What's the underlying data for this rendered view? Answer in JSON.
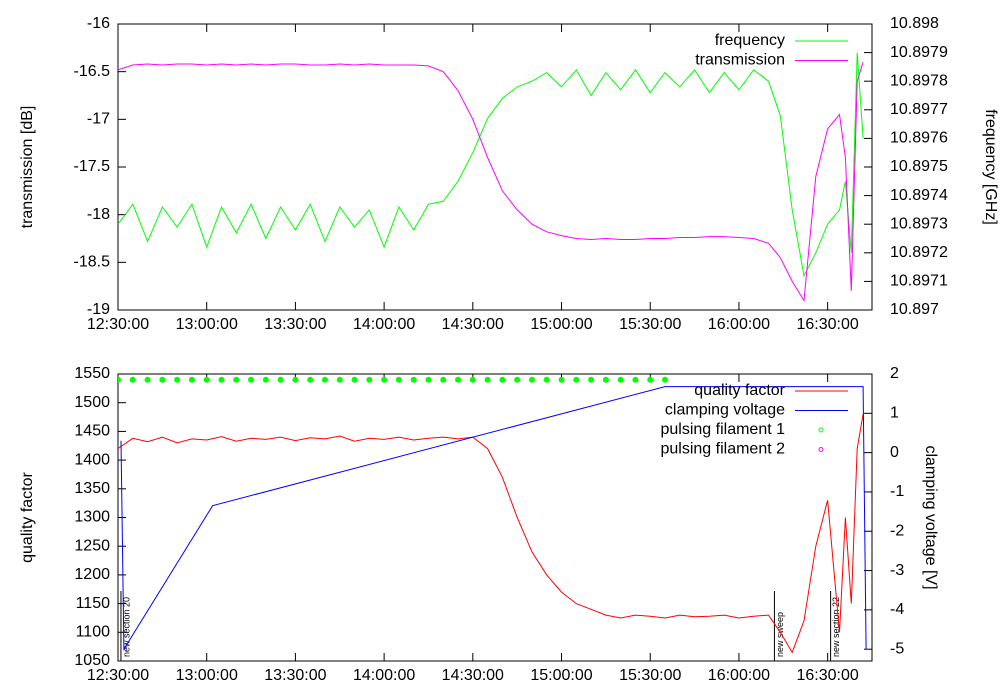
{
  "chart_data": [
    {
      "type": "line",
      "y_label": "transmission [dB]",
      "y2_label": "frequency [GHz]",
      "x": [
        "12:30:00",
        "12:35:00",
        "12:40:00",
        "12:45:00",
        "12:50:00",
        "12:55:00",
        "13:00:00",
        "13:05:00",
        "13:10:00",
        "13:15:00",
        "13:20:00",
        "13:25:00",
        "13:30:00",
        "13:35:00",
        "13:40:00",
        "13:45:00",
        "13:50:00",
        "13:55:00",
        "14:00:00",
        "14:05:00",
        "14:10:00",
        "14:15:00",
        "14:20:00",
        "14:25:00",
        "14:30:00",
        "14:35:00",
        "14:40:00",
        "14:45:00",
        "14:50:00",
        "14:55:00",
        "15:00:00",
        "15:05:00",
        "15:10:00",
        "15:15:00",
        "15:20:00",
        "15:25:00",
        "15:30:00",
        "15:35:00",
        "15:40:00",
        "15:45:00",
        "15:50:00",
        "15:55:00",
        "16:00:00",
        "16:05:00",
        "16:10:00",
        "16:14:00",
        "16:18:00",
        "16:22:00",
        "16:26:00",
        "16:30:00",
        "16:34:00",
        "16:36:00",
        "16:38:00",
        "16:40:00",
        "16:42:00"
      ],
      "series": [
        {
          "name": "frequency",
          "color": "#00ff00",
          "axis": "y2",
          "values": [
            10.8973,
            10.89737,
            10.89724,
            10.89736,
            10.89729,
            10.89737,
            10.89722,
            10.89736,
            10.89727,
            10.89737,
            10.89725,
            10.89736,
            10.89728,
            10.89737,
            10.89724,
            10.89736,
            10.89729,
            10.89735,
            10.89722,
            10.89736,
            10.89728,
            10.89737,
            10.89738,
            10.89745,
            10.89755,
            10.89767,
            10.89774,
            10.89778,
            10.8978,
            10.89783,
            10.89778,
            10.89784,
            10.89775,
            10.89783,
            10.89777,
            10.89784,
            10.89776,
            10.89783,
            10.89778,
            10.89784,
            10.89776,
            10.89783,
            10.89777,
            10.89784,
            10.8978,
            10.89768,
            10.89735,
            10.89712,
            10.8972,
            10.8973,
            10.89735,
            10.89745,
            10.8972,
            10.8979,
            10.8976
          ]
        },
        {
          "name": "transmission",
          "color": "#ff00ff",
          "values": [
            -16.48,
            -16.43,
            -16.42,
            -16.43,
            -16.42,
            -16.42,
            -16.43,
            -16.42,
            -16.43,
            -16.42,
            -16.43,
            -16.42,
            -16.42,
            -16.43,
            -16.43,
            -16.42,
            -16.43,
            -16.42,
            -16.43,
            -16.43,
            -16.43,
            -16.44,
            -16.5,
            -16.7,
            -17.0,
            -17.4,
            -17.75,
            -17.95,
            -18.1,
            -18.18,
            -18.22,
            -18.25,
            -18.26,
            -18.25,
            -18.26,
            -18.26,
            -18.25,
            -18.25,
            -18.24,
            -18.24,
            -18.23,
            -18.23,
            -18.24,
            -18.25,
            -18.3,
            -18.45,
            -18.7,
            -18.9,
            -17.6,
            -17.1,
            -16.95,
            -17.4,
            -18.8,
            -16.6,
            -16.4
          ]
        }
      ],
      "xlim": [
        "12:30:00",
        "16:45:00"
      ],
      "xticks": [
        "12:30:00",
        "13:00:00",
        "13:30:00",
        "14:00:00",
        "14:30:00",
        "15:00:00",
        "15:30:00",
        "16:00:00",
        "16:30:00"
      ],
      "ylim": [
        -19,
        -16
      ],
      "yticks": [
        -16,
        -16.5,
        -17,
        -17.5,
        -18,
        -18.5,
        -19
      ],
      "y2lim": [
        10.897,
        10.898
      ],
      "y2ticks": [
        10.898,
        10.8979,
        10.8978,
        10.8977,
        10.8976,
        10.8975,
        10.8974,
        10.8973,
        10.8972,
        10.8971,
        10.897
      ],
      "legend": "top right"
    },
    {
      "type": "line",
      "y_label": "quality factor",
      "y2_label": "clamping voltage [V]",
      "series": [
        {
          "name": "quality factor",
          "color": "#ff0000",
          "x": [
            "12:30:00",
            "12:35:00",
            "12:40:00",
            "12:45:00",
            "12:50:00",
            "12:55:00",
            "13:00:00",
            "13:05:00",
            "13:10:00",
            "13:15:00",
            "13:20:00",
            "13:25:00",
            "13:30:00",
            "13:35:00",
            "13:40:00",
            "13:45:00",
            "13:50:00",
            "13:55:00",
            "14:00:00",
            "14:05:00",
            "14:10:00",
            "14:15:00",
            "14:20:00",
            "14:25:00",
            "14:30:00",
            "14:35:00",
            "14:40:00",
            "14:45:00",
            "14:50:00",
            "14:55:00",
            "15:00:00",
            "15:05:00",
            "15:10:00",
            "15:15:00",
            "15:20:00",
            "15:25:00",
            "15:30:00",
            "15:35:00",
            "15:40:00",
            "15:45:00",
            "15:50:00",
            "15:55:00",
            "16:00:00",
            "16:05:00",
            "16:10:00",
            "16:14:00",
            "16:18:00",
            "16:22:00",
            "16:26:00",
            "16:30:00",
            "16:34:00",
            "16:36:00",
            "16:38:00",
            "16:40:00",
            "16:42:00"
          ],
          "values": [
            1420,
            1438,
            1432,
            1440,
            1430,
            1437,
            1435,
            1441,
            1433,
            1438,
            1436,
            1440,
            1434,
            1439,
            1437,
            1442,
            1433,
            1438,
            1436,
            1440,
            1435,
            1438,
            1440,
            1437,
            1440,
            1420,
            1370,
            1300,
            1240,
            1200,
            1170,
            1150,
            1140,
            1130,
            1125,
            1130,
            1128,
            1125,
            1130,
            1127,
            1128,
            1130,
            1125,
            1128,
            1130,
            1100,
            1065,
            1120,
            1250,
            1330,
            1100,
            1300,
            1150,
            1420,
            1480
          ]
        },
        {
          "name": "clamping voltage",
          "color": "#0000ff",
          "axis": "y2",
          "x": [
            "12:31:00",
            "12:32:00",
            "13:02:00",
            "15:35:00",
            "16:42:00",
            "16:43:00"
          ],
          "values": [
            0.3,
            -5,
            -1.35,
            1.68,
            1.68,
            -5
          ]
        },
        {
          "name": "pulsing filament 1",
          "color": "#00ff00",
          "type": "scatter",
          "x": [
            "12:30:00",
            "12:35:00",
            "12:40:00",
            "12:45:00",
            "12:50:00",
            "12:55:00",
            "13:00:00",
            "13:05:00",
            "13:10:00",
            "13:15:00",
            "13:20:00",
            "13:25:00",
            "13:30:00",
            "13:35:00",
            "13:40:00",
            "13:45:00",
            "13:50:00",
            "13:55:00",
            "14:00:00",
            "14:05:00",
            "14:10:00",
            "14:15:00",
            "14:20:00",
            "14:25:00",
            "14:30:00",
            "14:35:00",
            "14:40:00",
            "14:45:00",
            "14:50:00",
            "14:55:00",
            "15:00:00",
            "15:05:00",
            "15:10:00",
            "15:15:00",
            "15:20:00",
            "15:25:00",
            "15:30:00",
            "15:35:00"
          ],
          "values": [
            1540,
            1540,
            1540,
            1540,
            1540,
            1540,
            1540,
            1540,
            1540,
            1540,
            1540,
            1540,
            1540,
            1540,
            1540,
            1540,
            1540,
            1540,
            1540,
            1540,
            1540,
            1540,
            1540,
            1540,
            1540,
            1540,
            1540,
            1540,
            1540,
            1540,
            1540,
            1540,
            1540,
            1540,
            1540,
            1540,
            1540,
            1540
          ]
        },
        {
          "name": "pulsing filament 2",
          "color": "#ff00ff",
          "type": "scatter",
          "x": [],
          "values": []
        }
      ],
      "annotations": [
        {
          "x": "12:31:00",
          "text": "new section 20"
        },
        {
          "x": "16:12:00",
          "text": "new sweep"
        },
        {
          "x": "16:31:00",
          "text": "new section 22"
        }
      ],
      "xlim": [
        "12:30:00",
        "16:45:00"
      ],
      "xticks": [
        "12:30:00",
        "13:00:00",
        "13:30:00",
        "14:00:00",
        "14:30:00",
        "15:00:00",
        "15:30:00",
        "16:00:00",
        "16:30:00"
      ],
      "ylim": [
        1050,
        1550
      ],
      "yticks": [
        1050,
        1100,
        1150,
        1200,
        1250,
        1300,
        1350,
        1400,
        1450,
        1500,
        1550
      ],
      "y2lim": [
        -5.3,
        2
      ],
      "y2ticks": [
        -5,
        -4,
        -3,
        -2,
        -1,
        0,
        1,
        2
      ],
      "legend": "top right"
    }
  ]
}
